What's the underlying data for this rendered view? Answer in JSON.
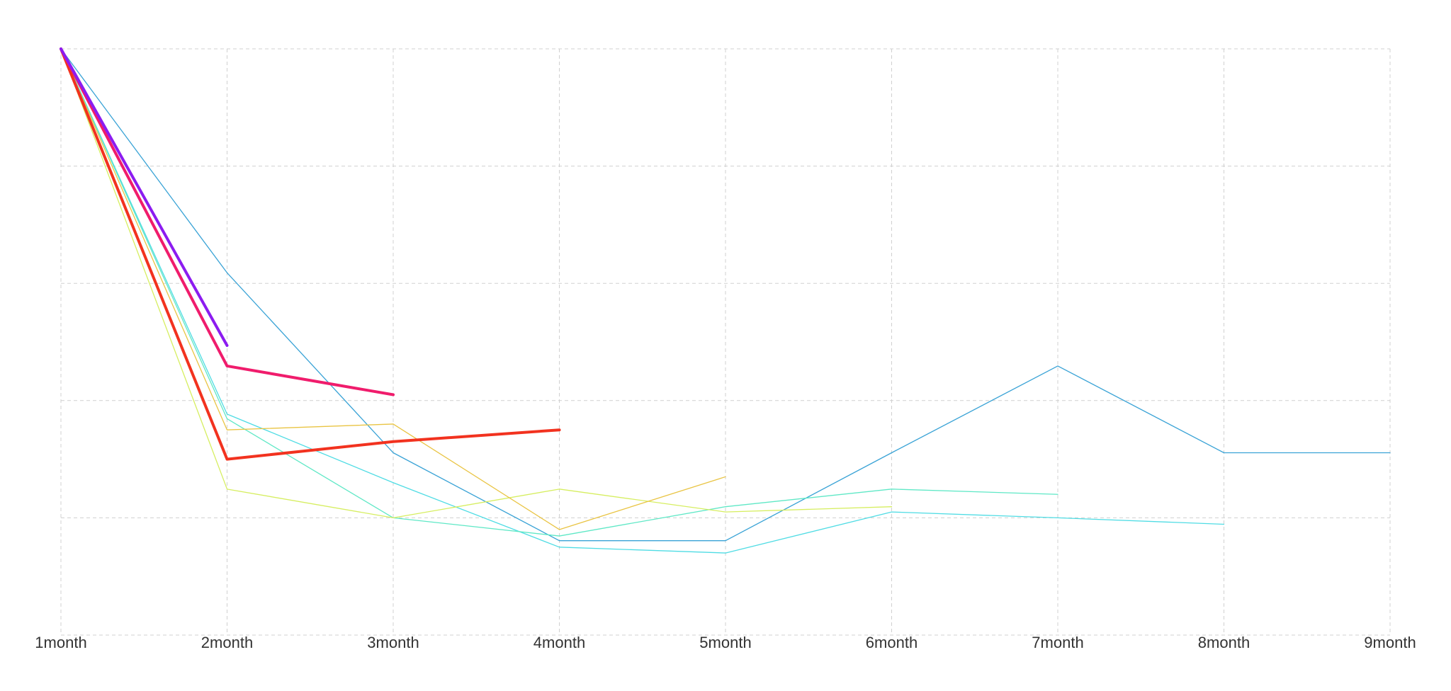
{
  "chart_data": {
    "type": "line",
    "categories": [
      "1month",
      "2month",
      "3month",
      "4month",
      "5month",
      "6month",
      "7month",
      "8month",
      "9month"
    ],
    "series": [
      {
        "color": "#3aa3d6",
        "width": 1.3,
        "values": [
          100,
          61.8,
          31.1,
          16.1,
          16.1,
          31.1,
          45.9,
          31.1,
          31.1
        ]
      },
      {
        "color": "#4fdce4",
        "width": 1.3,
        "values": [
          100,
          37.7,
          26.0,
          15.0,
          14.0,
          21.0,
          20.0,
          18.9,
          null
        ]
      },
      {
        "color": "#5fe8c6",
        "width": 1.3,
        "values": [
          100,
          36.9,
          20.0,
          16.9,
          21.9,
          24.9,
          24.0,
          null,
          null
        ]
      },
      {
        "color": "#d6ee60",
        "width": 1.3,
        "values": [
          100,
          24.9,
          20.0,
          24.9,
          21.0,
          21.9,
          null,
          null,
          null
        ]
      },
      {
        "color": "#e9c443",
        "width": 1.3,
        "values": [
          100,
          35.0,
          36.0,
          18.0,
          27.0,
          null,
          null,
          null,
          null
        ]
      },
      {
        "color": "#f2321f",
        "width": 4,
        "values": [
          100,
          30.0,
          33.0,
          35.0,
          null,
          null,
          null,
          null,
          null
        ]
      },
      {
        "color": "#f01c6c",
        "width": 4,
        "values": [
          100,
          45.9,
          41.0,
          null,
          null,
          null,
          null,
          null,
          null
        ]
      },
      {
        "color": "#8c1cf0",
        "width": 4,
        "values": [
          100,
          49.4,
          null,
          null,
          null,
          null,
          null,
          null,
          null
        ]
      }
    ],
    "ylim": [
      0,
      100
    ],
    "yticks": [
      0,
      20,
      40,
      60,
      80,
      100
    ],
    "grid": true
  }
}
